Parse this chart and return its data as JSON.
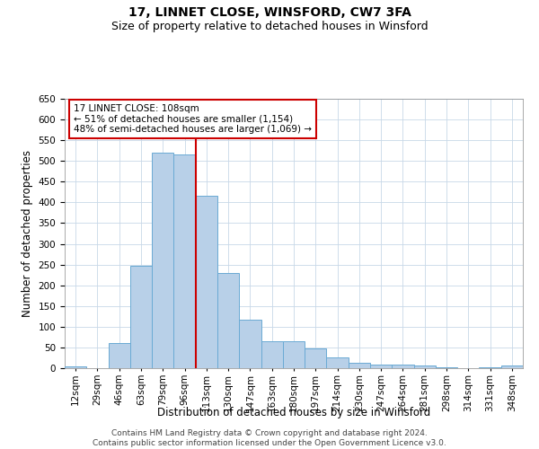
{
  "title": "17, LINNET CLOSE, WINSFORD, CW7 3FA",
  "subtitle": "Size of property relative to detached houses in Winsford",
  "xlabel": "Distribution of detached houses by size in Winsford",
  "ylabel": "Number of detached properties",
  "categories": [
    "12sqm",
    "29sqm",
    "46sqm",
    "63sqm",
    "79sqm",
    "96sqm",
    "113sqm",
    "130sqm",
    "147sqm",
    "163sqm",
    "180sqm",
    "197sqm",
    "214sqm",
    "230sqm",
    "247sqm",
    "264sqm",
    "281sqm",
    "298sqm",
    "314sqm",
    "331sqm",
    "348sqm"
  ],
  "values": [
    5,
    0,
    60,
    248,
    520,
    515,
    415,
    230,
    118,
    65,
    65,
    47,
    25,
    12,
    8,
    8,
    6,
    2,
    0,
    2,
    7
  ],
  "bar_color": "#b8d0e8",
  "bar_edge_color": "#6aaad4",
  "vline_color": "#cc0000",
  "vline_index": 6,
  "annotation_text": "17 LINNET CLOSE: 108sqm\n← 51% of detached houses are smaller (1,154)\n48% of semi-detached houses are larger (1,069) →",
  "annotation_box_facecolor": "#ffffff",
  "annotation_box_edgecolor": "#cc0000",
  "ylim": [
    0,
    650
  ],
  "yticks": [
    0,
    50,
    100,
    150,
    200,
    250,
    300,
    350,
    400,
    450,
    500,
    550,
    600,
    650
  ],
  "footer_line1": "Contains HM Land Registry data © Crown copyright and database right 2024.",
  "footer_line2": "Contains public sector information licensed under the Open Government Licence v3.0.",
  "background_color": "#ffffff",
  "grid_color": "#c8d8e8",
  "title_fontsize": 10,
  "subtitle_fontsize": 9,
  "xlabel_fontsize": 8.5,
  "ylabel_fontsize": 8.5,
  "tick_fontsize": 7.5,
  "annotation_fontsize": 7.5,
  "footer_fontsize": 6.5
}
